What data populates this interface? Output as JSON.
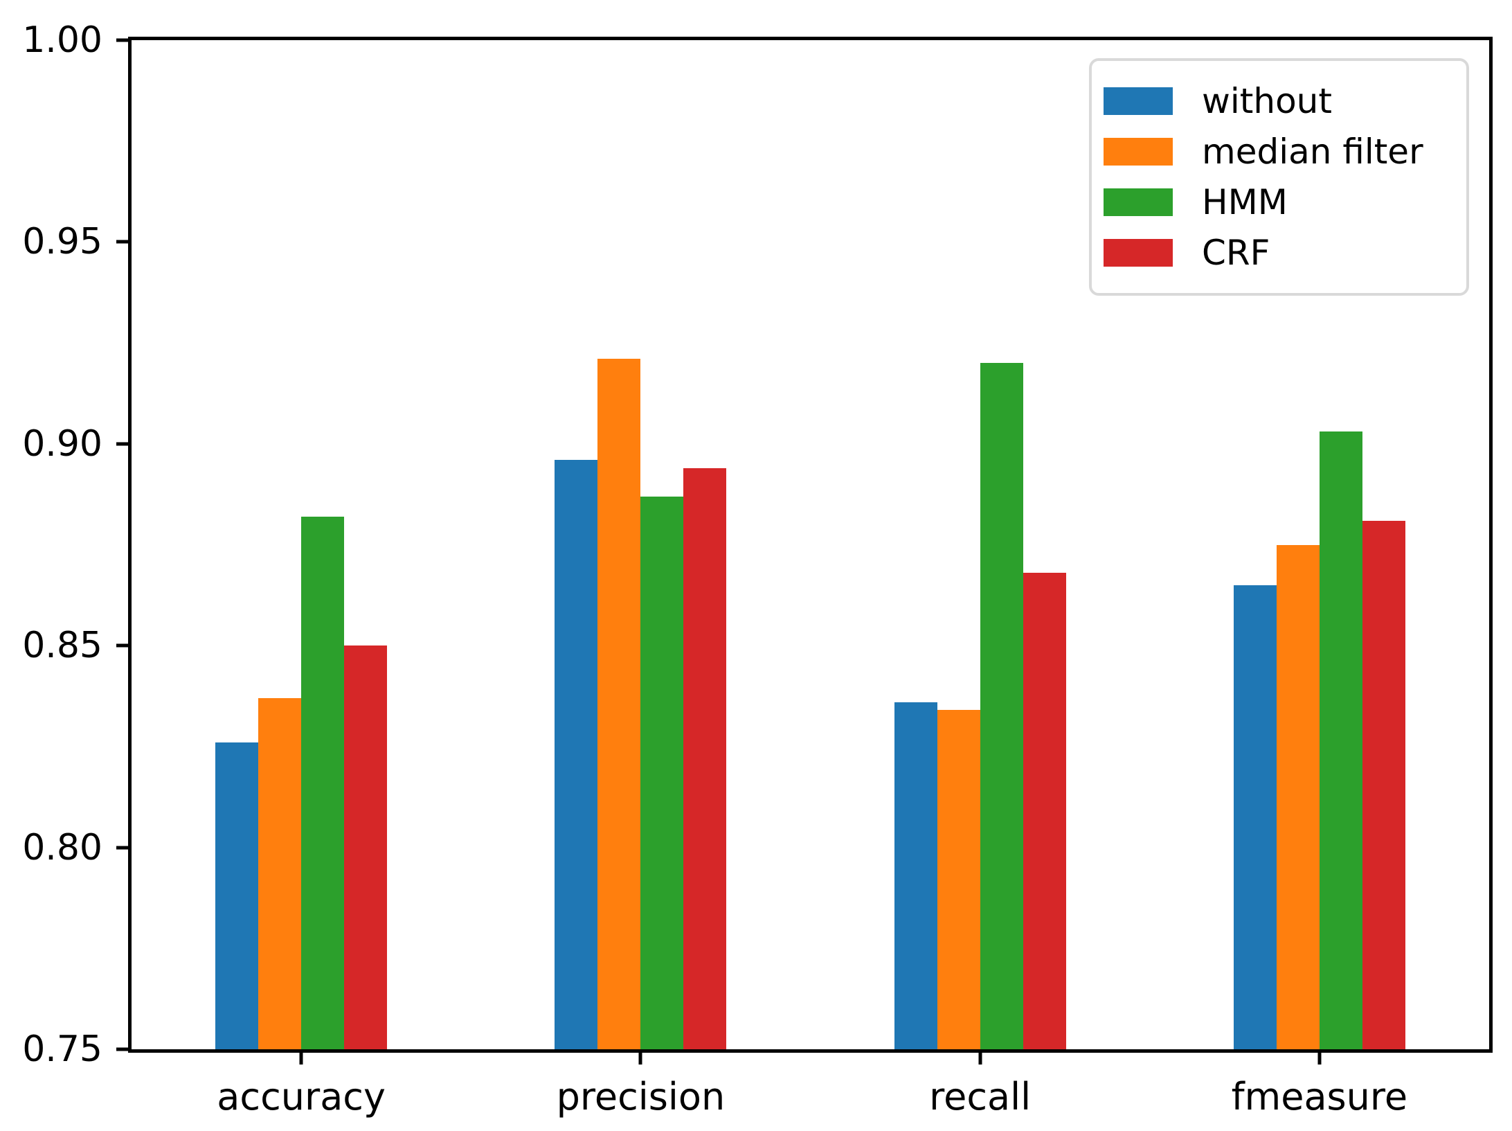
{
  "chart_data": {
    "type": "bar",
    "categories": [
      "accuracy",
      "precision",
      "recall",
      "fmeasure"
    ],
    "series": [
      {
        "name": "without",
        "color": "#1f77b4",
        "values": [
          0.826,
          0.896,
          0.836,
          0.865
        ]
      },
      {
        "name": "median filter",
        "color": "#ff7f0e",
        "values": [
          0.837,
          0.921,
          0.834,
          0.875
        ]
      },
      {
        "name": "HMM",
        "color": "#2ca02c",
        "values": [
          0.882,
          0.887,
          0.92,
          0.903
        ]
      },
      {
        "name": "CRF",
        "color": "#d62728",
        "values": [
          0.85,
          0.894,
          0.868,
          0.881
        ]
      }
    ],
    "title": "",
    "xlabel": "",
    "ylabel": "",
    "ylim": [
      0.75,
      1.0
    ],
    "ytick_values": [
      0.75,
      0.8,
      0.85,
      0.9,
      0.95,
      1.0
    ],
    "ytick_labels": [
      "0.75",
      "0.80",
      "0.85",
      "0.90",
      "0.95",
      "1.00"
    ],
    "grid": false,
    "legend_position": "upper-right",
    "axis_color": "#000000",
    "background_color": "#ffffff"
  }
}
